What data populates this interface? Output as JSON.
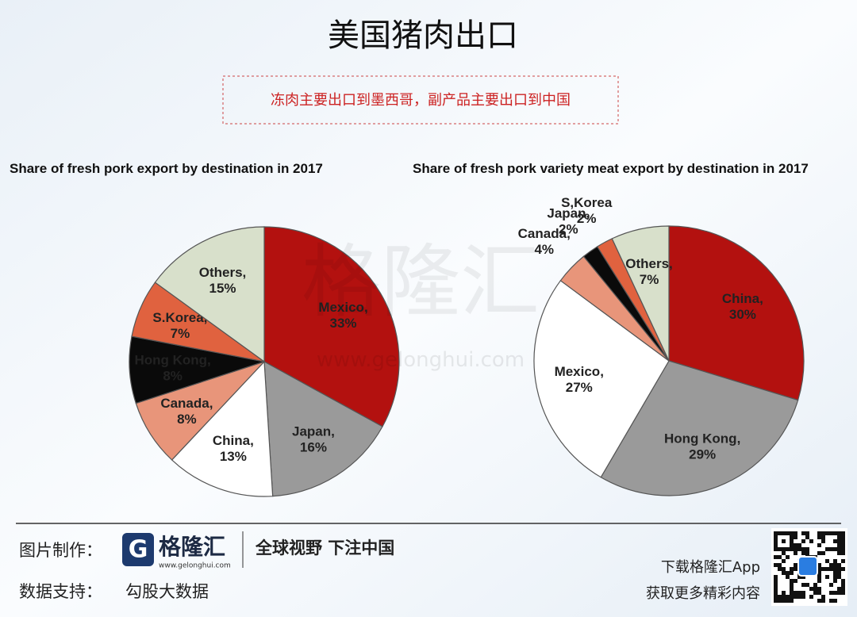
{
  "header": {
    "title": "美国猪肉出口",
    "subtitle": "冻肉主要出口到墨西哥，副产品主要出口到中国"
  },
  "watermark": {
    "logo": "格隆汇",
    "url": "www.gelonghui.com"
  },
  "chart_data": [
    {
      "type": "pie",
      "title": "Share of fresh pork export by destination in 2017",
      "categories": [
        "Mexico,",
        "Japan,",
        "China,",
        "Canada,",
        "Hong Kong,",
        "S.Korea,",
        "Others,"
      ],
      "values": [
        33,
        16,
        13,
        8,
        8,
        7,
        15
      ],
      "value_labels": [
        "33%",
        "16%",
        "13%",
        "8%",
        "8%",
        "7%",
        "15%"
      ],
      "colors": [
        "#b3110f",
        "#9a9a9a",
        "#ffffff",
        "#e8957a",
        "#0a0a0a",
        "#e0623f",
        "#d8e0cb"
      ]
    },
    {
      "type": "pie",
      "title": "Share of fresh pork variety meat export by destination in 2017",
      "categories": [
        "China,",
        "Hong Kong,",
        "Mexico,",
        "Canada,",
        "Japan,",
        "S,Korea",
        "Others,"
      ],
      "values": [
        30,
        29,
        27,
        4,
        2,
        2,
        7
      ],
      "value_labels": [
        "30%",
        "29%",
        "27%",
        "4%",
        "2%",
        "2%",
        "7%"
      ],
      "colors": [
        "#b3110f",
        "#9a9a9a",
        "#ffffff",
        "#e8957a",
        "#0a0a0a",
        "#e0623f",
        "#d8e0cb"
      ]
    }
  ],
  "footer": {
    "made_by_label": "图片制作：",
    "brand": "格隆汇",
    "brand_url": "www.gelonghui.com",
    "slogan": "全球视野 下注中国",
    "data_label": "数据支持：",
    "data_source": "勾股大数据",
    "app_line1": "下载格隆汇App",
    "app_line2": "获取更多精彩内容"
  }
}
